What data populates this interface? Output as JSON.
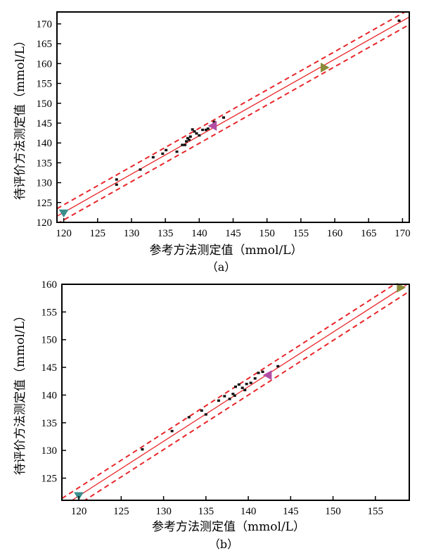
{
  "chart_data": [
    {
      "type": "scatter",
      "caption": "（a）",
      "xlabel": "参考方法测定值（mmol/L）",
      "ylabel": "待评价方法测定值（mmol/L）",
      "xlim": [
        119,
        171
      ],
      "ylim": [
        120,
        173
      ],
      "xticks": [
        120,
        125,
        130,
        135,
        140,
        145,
        150,
        155,
        160,
        165,
        170
      ],
      "yticks": [
        120,
        125,
        130,
        135,
        140,
        145,
        150,
        155,
        160,
        165,
        170
      ],
      "regression": {
        "slope": 0.965,
        "intercept": 6.71,
        "band": 1.9,
        "color": "#e8262a"
      },
      "points": [
        {
          "x": 127.8,
          "y": 130.8
        },
        {
          "x": 127.8,
          "y": 129.5
        },
        {
          "x": 131.3,
          "y": 133.3
        },
        {
          "x": 133.2,
          "y": 136.4
        },
        {
          "x": 134.6,
          "y": 137.3
        },
        {
          "x": 135.1,
          "y": 138.2
        },
        {
          "x": 136.7,
          "y": 137.8
        },
        {
          "x": 137.5,
          "y": 139.5
        },
        {
          "x": 137.9,
          "y": 139.5
        },
        {
          "x": 138.1,
          "y": 140.4
        },
        {
          "x": 138.3,
          "y": 141.2
        },
        {
          "x": 138.5,
          "y": 140.8
        },
        {
          "x": 138.7,
          "y": 141.6
        },
        {
          "x": 139.0,
          "y": 143.4
        },
        {
          "x": 139.3,
          "y": 142.9
        },
        {
          "x": 139.6,
          "y": 142.4
        },
        {
          "x": 140.0,
          "y": 141.9
        },
        {
          "x": 140.5,
          "y": 143.3
        },
        {
          "x": 141.0,
          "y": 143.3
        },
        {
          "x": 141.3,
          "y": 143.6
        },
        {
          "x": 142.2,
          "y": 145.3
        },
        {
          "x": 143.6,
          "y": 146.4
        },
        {
          "x": 169.5,
          "y": 170.8
        }
      ],
      "markers": [
        {
          "x": 120.0,
          "y": 122.3,
          "color": "#3a8e8c",
          "shape": "triangle-down"
        },
        {
          "x": 142.0,
          "y": 144.3,
          "color": "#b34ea6",
          "shape": "triangle-left"
        },
        {
          "x": 158.5,
          "y": 159.0,
          "color": "#8a8a3a",
          "shape": "triangle-right"
        }
      ]
    },
    {
      "type": "scatter",
      "caption": "（b）",
      "xlabel": "参考方法测定值（mmol/L）",
      "ylabel": "待评价方法测定值（mmol/L）",
      "xlim": [
        118,
        159
      ],
      "ylim": [
        121,
        160
      ],
      "xticks": [
        120,
        125,
        130,
        135,
        140,
        145,
        150,
        155
      ],
      "yticks": [
        125,
        130,
        135,
        140,
        145,
        150,
        155,
        160
      ],
      "regression": {
        "slope": 0.985,
        "intercept": 3.6,
        "band": 1.5,
        "color": "#e8262a"
      },
      "points": [
        {
          "x": 127.5,
          "y": 130.2
        },
        {
          "x": 131.0,
          "y": 133.5
        },
        {
          "x": 133.0,
          "y": 136.0
        },
        {
          "x": 134.5,
          "y": 137.2
        },
        {
          "x": 135.0,
          "y": 136.5
        },
        {
          "x": 136.5,
          "y": 139.0
        },
        {
          "x": 137.2,
          "y": 139.8
        },
        {
          "x": 137.8,
          "y": 139.3
        },
        {
          "x": 138.2,
          "y": 140.2
        },
        {
          "x": 138.5,
          "y": 141.5
        },
        {
          "x": 138.9,
          "y": 141.9
        },
        {
          "x": 139.3,
          "y": 141.3
        },
        {
          "x": 139.8,
          "y": 142.0
        },
        {
          "x": 140.3,
          "y": 142.2
        },
        {
          "x": 140.8,
          "y": 143.0
        },
        {
          "x": 141.2,
          "y": 144.0
        },
        {
          "x": 141.7,
          "y": 144.2
        },
        {
          "x": 143.5,
          "y": 145.2
        },
        {
          "x": 138.4,
          "y": 139.9
        },
        {
          "x": 139.6,
          "y": 140.9
        }
      ],
      "markers": [
        {
          "x": 120.0,
          "y": 121.8,
          "color": "#3a8e8c",
          "shape": "triangle-down"
        },
        {
          "x": 142.3,
          "y": 143.6,
          "color": "#b34ea6",
          "shape": "triangle-left"
        },
        {
          "x": 158.0,
          "y": 159.4,
          "color": "#8a8a3a",
          "shape": "triangle-right"
        }
      ]
    }
  ]
}
